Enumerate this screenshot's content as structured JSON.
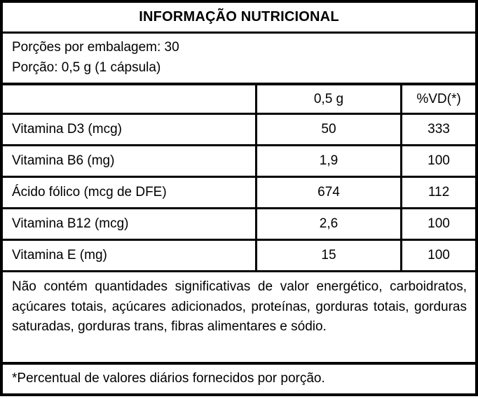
{
  "label": {
    "title": "INFORMAÇÃO NUTRICIONAL",
    "serving_info": {
      "servings_per_package": "Porções por embalagem: 30",
      "serving_size": "Porção: 0,5 g (1 cápsula)"
    },
    "table": {
      "header": {
        "nutrient_col": "",
        "amount_col": "0,5 g",
        "dv_col": "%VD(*)"
      },
      "rows": [
        {
          "name": "Vitamina D3 (mcg)",
          "amount": "50",
          "dv": "333"
        },
        {
          "name": "Vitamina B6 (mg)",
          "amount": "1,9",
          "dv": "100"
        },
        {
          "name": "Ácido fólico (mcg de DFE)",
          "amount": "674",
          "dv": "112"
        },
        {
          "name": "Vitamina B12 (mcg)",
          "amount": "2,6",
          "dv": "100"
        },
        {
          "name": "Vitamina E (mg)",
          "amount": "15",
          "dv": "100"
        }
      ]
    },
    "note": "Não contém quantidades significativas de valor energético, carboidratos, açúcares totais, açúcares adicionados, proteínas, gorduras totais, gorduras saturadas, gorduras trans, fibras alimentares e sódio.",
    "footnote": "*Percentual de valores diários fornecidos por porção."
  },
  "colors": {
    "border": "#000000",
    "background": "#ffffff",
    "text": "#000000"
  }
}
